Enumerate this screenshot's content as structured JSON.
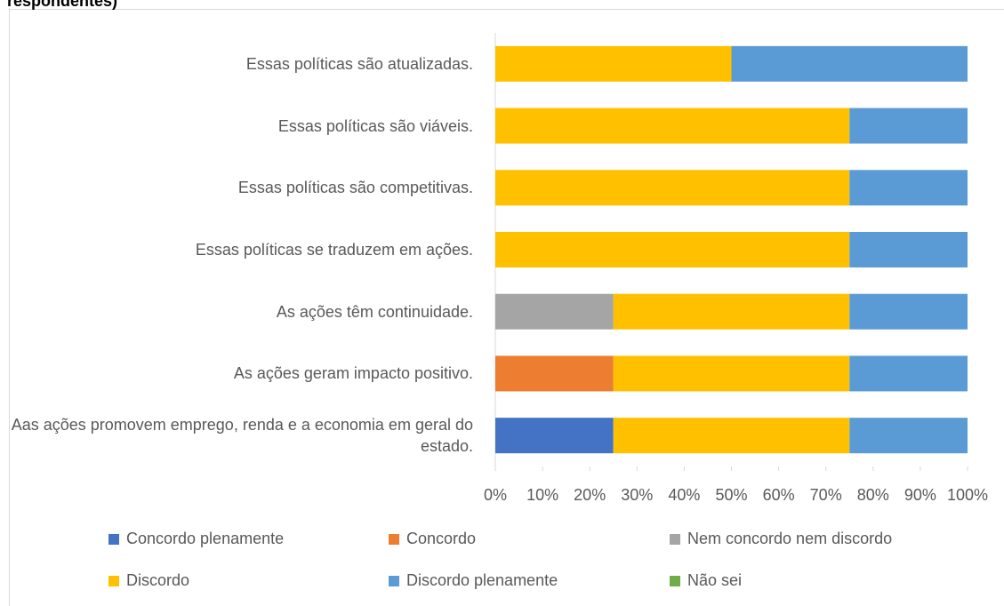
{
  "chart_data": {
    "type": "stacked_barh",
    "title": "respondentes)",
    "categories": [
      "Essas políticas são atualizadas.",
      "Essas políticas são viáveis.",
      "Essas políticas são competitivas.",
      "Essas políticas se traduzem em ações.",
      "As ações têm continuidade.",
      "As ações geram impacto positivo.",
      "Aas ações promovem emprego, renda e a economia em geral do estado."
    ],
    "series": [
      {
        "name": "Concordo plenamente",
        "color": "#4472c4",
        "values": [
          0,
          0,
          0,
          0,
          0,
          0,
          25
        ]
      },
      {
        "name": "Concordo",
        "color": "#ed7d31",
        "values": [
          0,
          0,
          0,
          0,
          0,
          25,
          0
        ]
      },
      {
        "name": "Nem concordo nem discordo",
        "color": "#a5a5a5",
        "values": [
          0,
          0,
          0,
          0,
          25,
          0,
          0
        ]
      },
      {
        "name": "Discordo",
        "color": "#ffc000",
        "values": [
          50,
          75,
          75,
          75,
          50,
          50,
          50
        ]
      },
      {
        "name": "Discordo plenamente",
        "color": "#5b9bd5",
        "values": [
          50,
          25,
          25,
          25,
          25,
          25,
          25
        ]
      },
      {
        "name": "Não sei",
        "color": "#70ad47",
        "values": [
          0,
          0,
          0,
          0,
          0,
          0,
          0
        ]
      }
    ],
    "xlim": [
      0,
      100
    ],
    "xticks": [
      {
        "value": 0,
        "label": "0%"
      },
      {
        "value": 10,
        "label": "10%"
      },
      {
        "value": 20,
        "label": "20%"
      },
      {
        "value": 30,
        "label": "30%"
      },
      {
        "value": 40,
        "label": "40%"
      },
      {
        "value": 50,
        "label": "50%"
      },
      {
        "value": 60,
        "label": "60%"
      },
      {
        "value": 70,
        "label": "70%"
      },
      {
        "value": 80,
        "label": "80%"
      },
      {
        "value": 90,
        "label": "90%"
      },
      {
        "value": 100,
        "label": "100%"
      }
    ],
    "legend": "bottom"
  }
}
